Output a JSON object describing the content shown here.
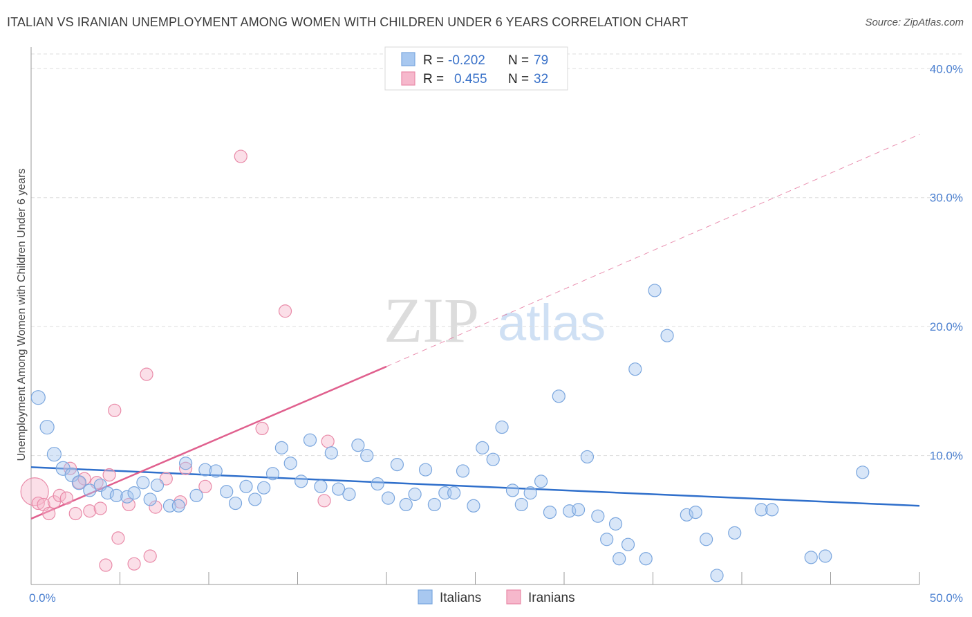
{
  "title": "ITALIAN VS IRANIAN UNEMPLOYMENT AMONG WOMEN WITH CHILDREN UNDER 6 YEARS CORRELATION CHART",
  "source": "Source: ZipAtlas.com",
  "watermark": {
    "zip": "ZIP",
    "atlas": "atlas"
  },
  "legend": {
    "r_label": "R =",
    "n_label": "N =",
    "italians": {
      "r": "-0.202",
      "n": "79"
    },
    "iranians": {
      "r": "0.455",
      "n": "32"
    }
  },
  "colors": {
    "italians_fill": "#a8c8f0",
    "italians_stroke": "#7aa6de",
    "italians_line": "#2f6fcb",
    "iranians_fill": "#f6b8cc",
    "iranians_stroke": "#e98aa8",
    "iranians_line": "#e0608e",
    "tick_text": "#4a7fd0",
    "grid": "#dddddd"
  },
  "chart_data": {
    "type": "scatter",
    "title": "ITALIAN VS IRANIAN UNEMPLOYMENT AMONG WOMEN WITH CHILDREN UNDER 6 YEARS CORRELATION CHART",
    "xlabel": "",
    "ylabel": "Unemployment Among Women with Children Under 6 years",
    "xlim": [
      0,
      50
    ],
    "ylim": [
      0,
      42
    ],
    "x_tick_labels": [
      "0.0%",
      "50.0%"
    ],
    "y_ticks": [
      10,
      20,
      30,
      40
    ],
    "y_tick_labels": [
      "10.0%",
      "20.0%",
      "30.0%",
      "40.0%"
    ],
    "grid": true,
    "legend_position": "top-center",
    "series": [
      {
        "name": "Italians",
        "trend": {
          "x0": 0,
          "y0": 9.1,
          "x1": 50,
          "y1": 6.1
        },
        "points": [
          [
            0.4,
            14.5
          ],
          [
            0.9,
            12.2
          ],
          [
            1.3,
            10.1
          ],
          [
            1.8,
            9.0
          ],
          [
            2.3,
            8.5
          ],
          [
            2.7,
            7.9
          ],
          [
            3.3,
            7.3
          ],
          [
            3.9,
            7.7
          ],
          [
            4.3,
            7.1
          ],
          [
            4.8,
            6.9
          ],
          [
            5.4,
            6.8
          ],
          [
            5.8,
            7.1
          ],
          [
            6.3,
            7.9
          ],
          [
            6.7,
            6.6
          ],
          [
            7.1,
            7.7
          ],
          [
            7.8,
            6.1
          ],
          [
            8.3,
            6.1
          ],
          [
            8.7,
            9.4
          ],
          [
            9.3,
            6.9
          ],
          [
            9.8,
            8.9
          ],
          [
            10.4,
            8.8
          ],
          [
            11.0,
            7.2
          ],
          [
            11.5,
            6.3
          ],
          [
            12.1,
            7.6
          ],
          [
            12.6,
            6.6
          ],
          [
            13.1,
            7.5
          ],
          [
            13.6,
            8.6
          ],
          [
            14.1,
            10.6
          ],
          [
            14.6,
            9.4
          ],
          [
            15.2,
            8.0
          ],
          [
            15.7,
            11.2
          ],
          [
            16.3,
            7.6
          ],
          [
            16.9,
            10.2
          ],
          [
            17.3,
            7.4
          ],
          [
            17.9,
            7.0
          ],
          [
            18.4,
            10.8
          ],
          [
            18.9,
            10.0
          ],
          [
            19.5,
            7.8
          ],
          [
            20.1,
            6.7
          ],
          [
            20.6,
            9.3
          ],
          [
            21.1,
            6.2
          ],
          [
            21.6,
            7.0
          ],
          [
            22.2,
            8.9
          ],
          [
            22.7,
            6.2
          ],
          [
            23.3,
            7.1
          ],
          [
            23.8,
            7.1
          ],
          [
            24.3,
            8.8
          ],
          [
            24.9,
            6.1
          ],
          [
            25.4,
            10.6
          ],
          [
            26.0,
            9.7
          ],
          [
            26.5,
            12.2
          ],
          [
            27.1,
            7.3
          ],
          [
            27.6,
            6.2
          ],
          [
            28.1,
            7.1
          ],
          [
            28.7,
            8.0
          ],
          [
            29.2,
            5.6
          ],
          [
            29.7,
            14.6
          ],
          [
            30.3,
            5.7
          ],
          [
            30.8,
            5.8
          ],
          [
            31.3,
            9.9
          ],
          [
            31.9,
            5.3
          ],
          [
            32.4,
            3.5
          ],
          [
            32.9,
            4.7
          ],
          [
            33.1,
            2.0
          ],
          [
            33.6,
            3.1
          ],
          [
            34.0,
            16.7
          ],
          [
            34.6,
            2.0
          ],
          [
            35.1,
            22.8
          ],
          [
            35.8,
            19.3
          ],
          [
            36.9,
            5.4
          ],
          [
            37.4,
            5.6
          ],
          [
            38.0,
            3.5
          ],
          [
            38.6,
            0.7
          ],
          [
            39.6,
            4.0
          ],
          [
            41.1,
            5.8
          ],
          [
            41.7,
            5.8
          ],
          [
            43.9,
            2.1
          ],
          [
            44.7,
            2.2
          ],
          [
            46.8,
            8.7
          ]
        ]
      },
      {
        "name": "Iranians",
        "trend": {
          "x0": 0,
          "y0": 5.1,
          "x1": 20,
          "y1": 16.9,
          "dash_to_x": 50,
          "dash_to_y": 34.9
        },
        "points": [
          [
            0.2,
            7.2
          ],
          [
            0.4,
            6.3
          ],
          [
            0.7,
            6.2
          ],
          [
            1.0,
            5.5
          ],
          [
            1.3,
            6.4
          ],
          [
            1.6,
            6.9
          ],
          [
            2.0,
            6.7
          ],
          [
            2.2,
            9.0
          ],
          [
            2.5,
            5.5
          ],
          [
            2.7,
            7.9
          ],
          [
            3.0,
            8.2
          ],
          [
            3.3,
            5.7
          ],
          [
            3.7,
            7.9
          ],
          [
            3.9,
            5.9
          ],
          [
            4.2,
            1.5
          ],
          [
            4.4,
            8.5
          ],
          [
            4.7,
            13.5
          ],
          [
            4.9,
            3.6
          ],
          [
            5.5,
            6.2
          ],
          [
            5.8,
            1.6
          ],
          [
            6.5,
            16.3
          ],
          [
            6.7,
            2.2
          ],
          [
            7.0,
            6.0
          ],
          [
            7.6,
            8.2
          ],
          [
            8.4,
            6.4
          ],
          [
            8.7,
            9.0
          ],
          [
            9.8,
            7.6
          ],
          [
            11.8,
            33.2
          ],
          [
            13.0,
            12.1
          ],
          [
            14.3,
            21.2
          ],
          [
            16.5,
            6.5
          ],
          [
            16.7,
            11.1
          ]
        ]
      }
    ]
  }
}
